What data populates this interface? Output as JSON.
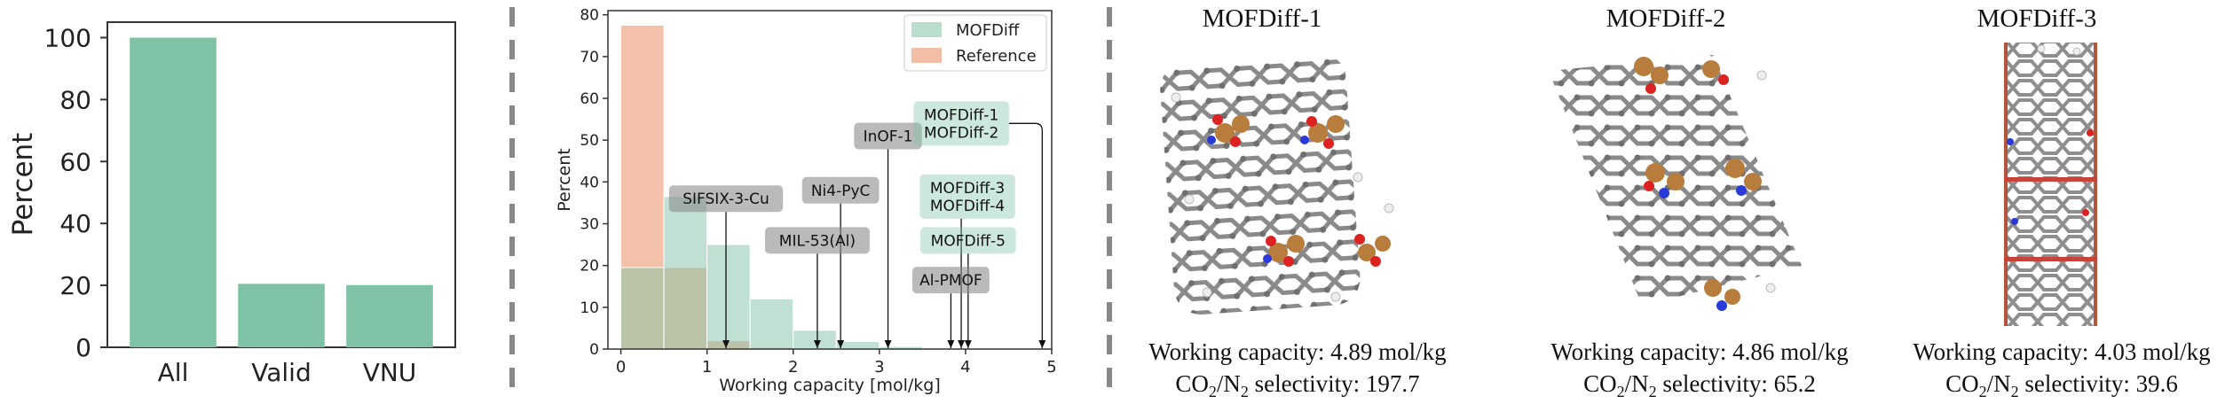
{
  "colors": {
    "mofdiff": "#80c2a6",
    "reference": "#f2b79c",
    "neutral": "#8c8c8c",
    "separator": "#888888"
  },
  "chart_data": [
    {
      "type": "bar",
      "categories": [
        "All",
        "Valid",
        "VNU"
      ],
      "values": [
        100,
        20.5,
        20.1
      ],
      "ylabel": "Percent",
      "ylim": [
        0,
        105
      ],
      "yticks": [
        0,
        20,
        40,
        60,
        80,
        100
      ],
      "grid": false
    },
    {
      "type": "histogram",
      "xlabel": "Working capacity [mol/kg]",
      "ylabel": "Percent",
      "xlim": [
        -0.15,
        5.0
      ],
      "ylim": [
        0,
        81
      ],
      "xticks": [
        0,
        1,
        2,
        3,
        4,
        5
      ],
      "yticks": [
        0,
        10,
        20,
        30,
        40,
        50,
        60,
        70,
        80
      ],
      "bin_edges": [
        0,
        0.5,
        1.0,
        1.5,
        2.0,
        2.5,
        3.0,
        3.5,
        4.0,
        4.5,
        5.0
      ],
      "legend_position": "top-right",
      "series": [
        {
          "name": "MOFDiff",
          "values": [
            19.5,
            36.5,
            25.0,
            12.0,
            4.5,
            1.8,
            0.6,
            0.3,
            0.1,
            0.05
          ]
        },
        {
          "name": "Reference",
          "values": [
            77.5,
            19.5,
            2.0,
            0.4,
            0.1,
            0.05,
            0,
            0,
            0,
            0
          ]
        }
      ],
      "annotations": [
        {
          "label": "SIFSIX-3-Cu",
          "x": 1.22,
          "kind": "reference",
          "text_y": 36.0
        },
        {
          "label": "Ni4-PyC",
          "x": 2.55,
          "kind": "reference",
          "text_y": 38.0
        },
        {
          "label": "MIL-53(Al)",
          "x": 2.28,
          "kind": "reference",
          "text_y": 26.0
        },
        {
          "label": "InOF-1",
          "x": 3.1,
          "kind": "reference",
          "text_y": 51.0
        },
        {
          "label": "MOFDiff-3\nMOFDiff-4",
          "x": 3.95,
          "kind": "generated",
          "text_y": 36.5
        },
        {
          "label": "MOFDiff-5",
          "x": 4.03,
          "kind": "generated",
          "text_y": 26.0
        },
        {
          "label": "Al-PMOF",
          "x": 3.83,
          "kind": "reference",
          "text_y": 16.5
        },
        {
          "label": "MOFDiff-1\nMOFDiff-2",
          "x": 4.89,
          "kind": "generated",
          "text_y": 54.0
        }
      ]
    }
  ],
  "structures": [
    {
      "title": "MOFDiff-1",
      "capacity": "Working capacity: 4.89 mol/kg",
      "sel_prefix": "CO",
      "sel_sub1": "2",
      "sel_mid": "/N",
      "sel_sub2": "2",
      "sel_suffix": " selectivity: 197.7"
    },
    {
      "title": "MOFDiff-2",
      "capacity": "Working capacity: 4.86 mol/kg",
      "sel_prefix": "CO",
      "sel_sub1": "2",
      "sel_mid": "/N",
      "sel_sub2": "2",
      "sel_suffix": " selectivity: 65.2"
    },
    {
      "title": "MOFDiff-3",
      "capacity": "Working capacity: 4.03 mol/kg",
      "sel_prefix": "CO",
      "sel_sub1": "2",
      "sel_mid": "/N",
      "sel_sub2": "2",
      "sel_suffix": " selectivity: 39.6"
    }
  ]
}
